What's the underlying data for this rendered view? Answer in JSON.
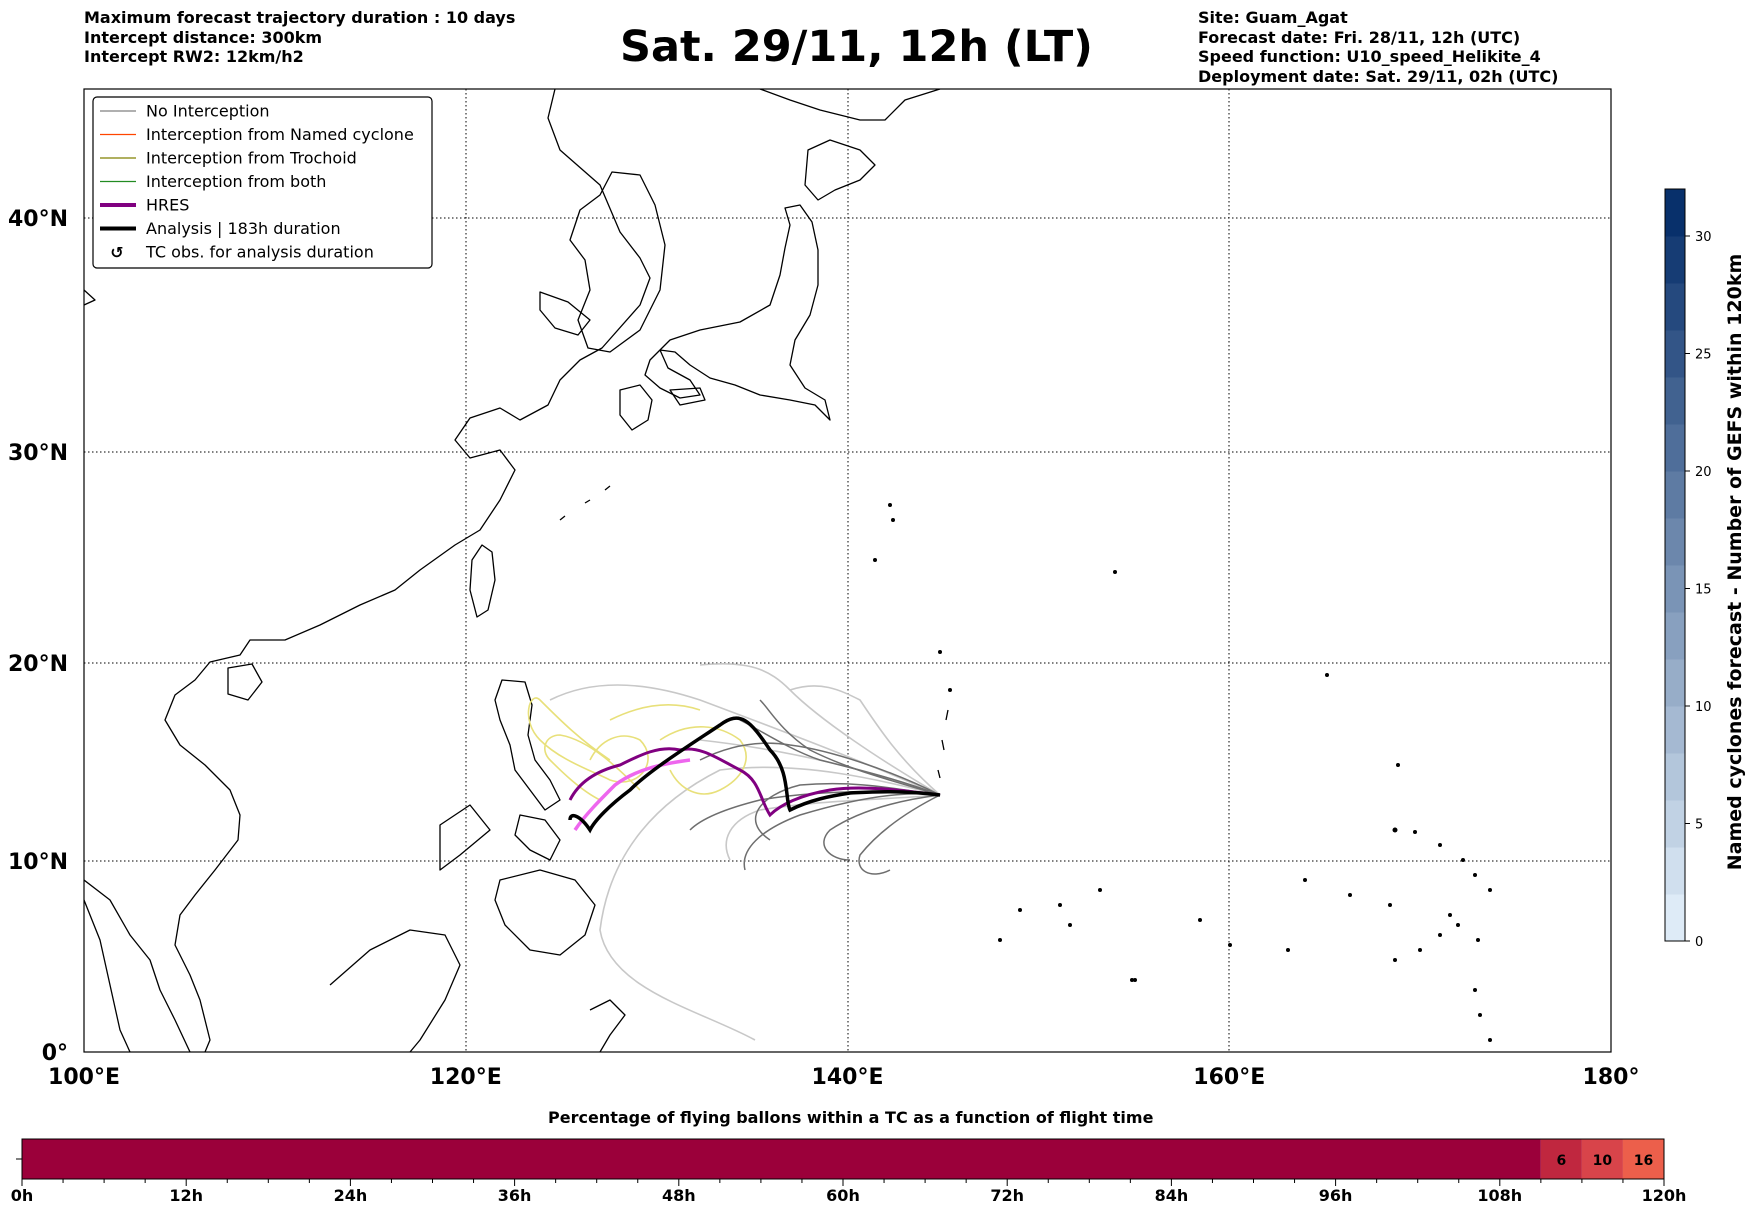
{
  "header": {
    "left_lines": [
      "Maximum forecast trajectory duration : 10 days",
      "Intercept distance: 300km",
      "Intercept RW2: 12km/h2"
    ],
    "title": "Sat. 29/11, 12h (LT)",
    "right_lines": [
      "Site: Guam_Agat",
      "Forecast date: Fri. 28/11, 12h (UTC)",
      "Speed function: U10_speed_Helikite_4",
      "Deployment date: Sat. 29/11, 02h (UTC)"
    ]
  },
  "map": {
    "lon_ticks": [
      "100°E",
      "120°E",
      "140°E",
      "160°E",
      "180°"
    ],
    "lat_ticks": [
      "0°",
      "10°N",
      "20°N",
      "30°N",
      "40°N"
    ],
    "lon_range": [
      100,
      180
    ],
    "lat_range": [
      0,
      45.5
    ],
    "legend": [
      {
        "label": "No Interception",
        "color": "#808080",
        "style": "thin"
      },
      {
        "label": "Interception from Named cyclone",
        "color": "#ff4500",
        "style": "thin"
      },
      {
        "label": "Interception from Trochoid",
        "color": "#808000",
        "style": "thin"
      },
      {
        "label": "Interception from both",
        "color": "#228b22",
        "style": "thin"
      },
      {
        "label": "HRES",
        "color": "#800080",
        "style": "thick"
      },
      {
        "label": "Analysis | 183h duration",
        "color": "#000000",
        "style": "thick"
      },
      {
        "label": "TC obs. for analysis duration",
        "color": "#000000",
        "style": "marker"
      }
    ]
  },
  "colorbar": {
    "label": "Named cyclones forecast - Number of GEFS within 120km",
    "ticks": [
      "0",
      "5",
      "10",
      "15",
      "20",
      "25",
      "30"
    ],
    "range": [
      0,
      32
    ]
  },
  "flight_bar": {
    "title": "Percentage of flying ballons within a TC as a function of flight time",
    "ticks": [
      "0h",
      "12h",
      "24h",
      "36h",
      "48h",
      "60h",
      "72h",
      "84h",
      "96h",
      "108h",
      "120h"
    ],
    "segments": [
      {
        "start_h": 0,
        "end_h": 111,
        "label": "",
        "color": "#9b003a"
      },
      {
        "start_h": 111,
        "end_h": 114,
        "label": "6",
        "color": "#c0273f"
      },
      {
        "start_h": 114,
        "end_h": 117,
        "label": "10",
        "color": "#d8444a"
      },
      {
        "start_h": 117,
        "end_h": 120,
        "label": "16",
        "color": "#ec5f4b"
      }
    ]
  }
}
